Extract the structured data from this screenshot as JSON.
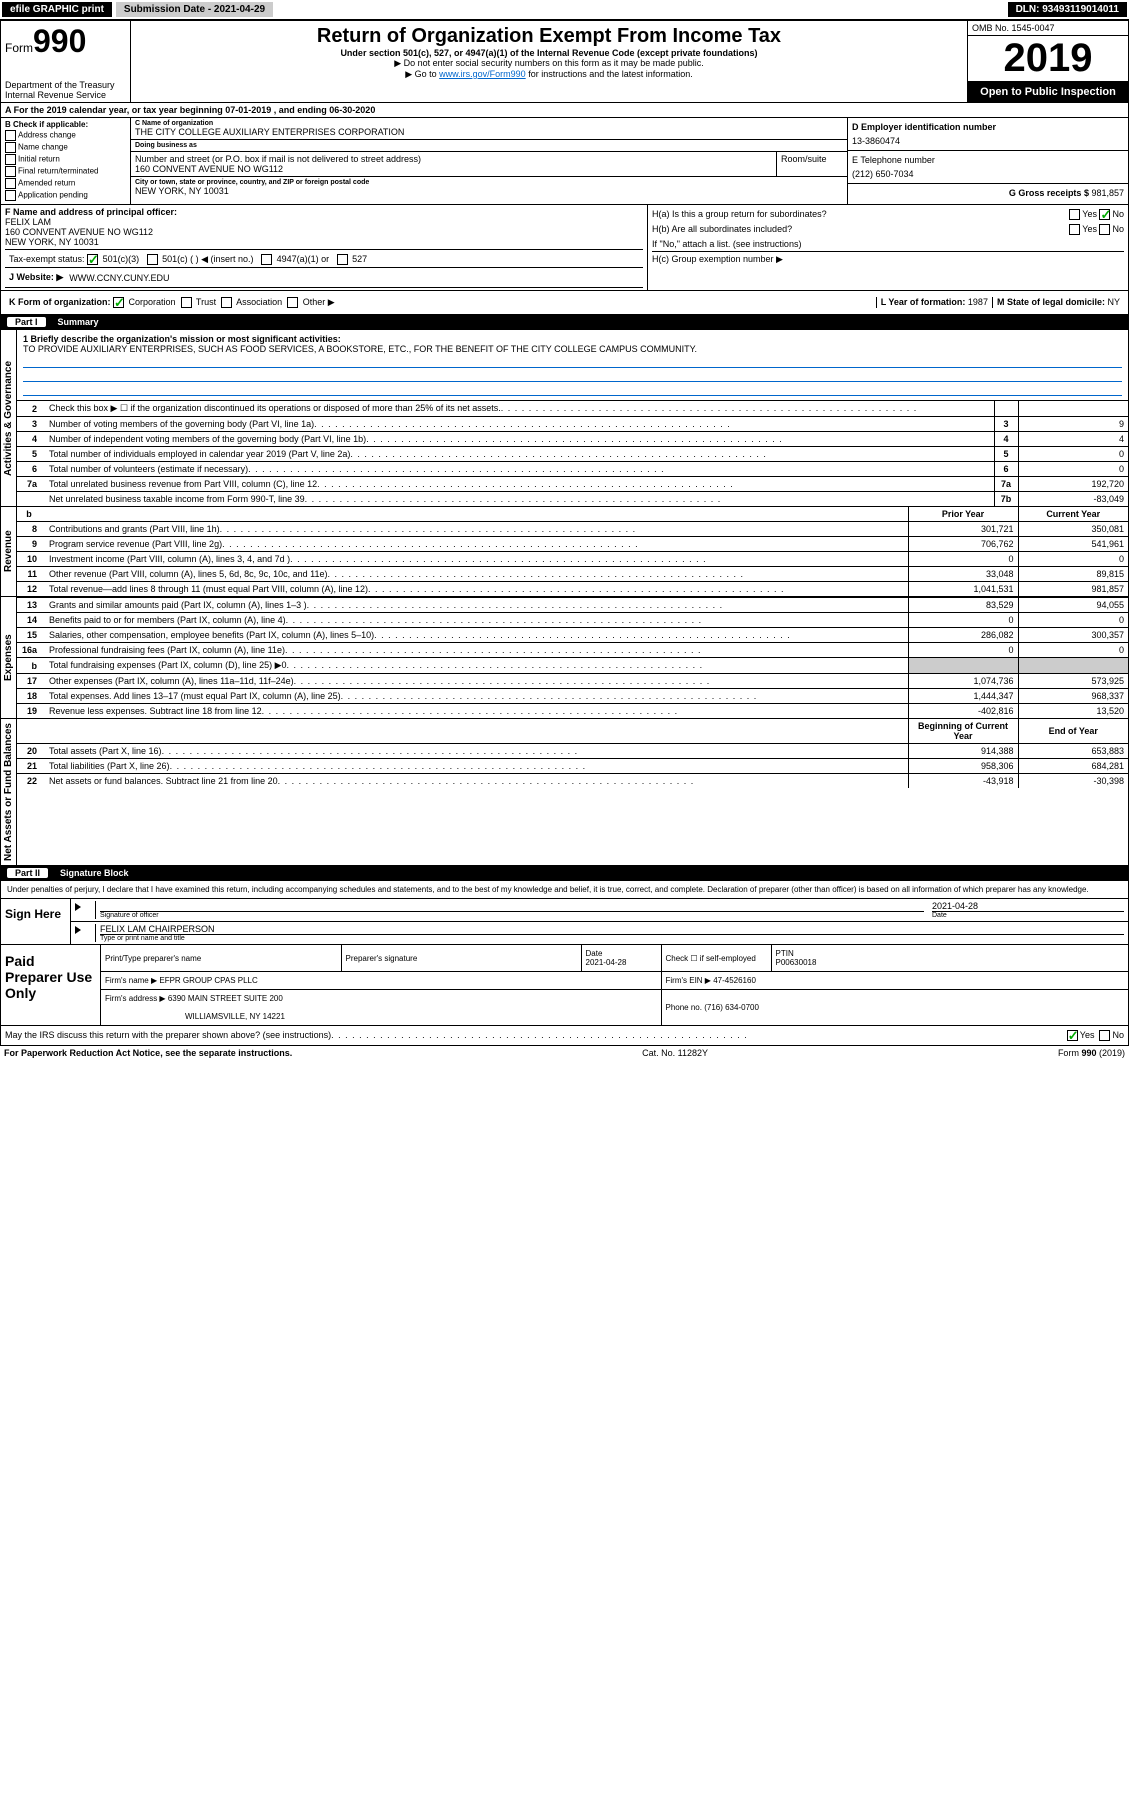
{
  "topbar": {
    "efile": "efile GRAPHIC print",
    "submission": "Submission Date - 2021-04-29",
    "dln": "DLN: 93493119014011"
  },
  "header": {
    "form_label": "Form",
    "form_number": "990",
    "title": "Return of Organization Exempt From Income Tax",
    "subtitle": "Under section 501(c), 527, or 4947(a)(1) of the Internal Revenue Code (except private foundations)",
    "note1": "▶ Do not enter social security numbers on this form as it may be made public.",
    "note2_pre": "▶ Go to ",
    "note2_link": "www.irs.gov/Form990",
    "note2_post": " for instructions and the latest information.",
    "dept": "Department of the Treasury\nInternal Revenue Service",
    "omb": "OMB No. 1545-0047",
    "year": "2019",
    "open": "Open to Public Inspection"
  },
  "rowA": "A For the 2019 calendar year, or tax year beginning 07-01-2019   , and ending 06-30-2020",
  "boxB": {
    "title": "B Check if applicable:",
    "items": [
      "Address change",
      "Name change",
      "Initial return",
      "Final return/terminated",
      "Amended return",
      "Application pending"
    ]
  },
  "boxC": {
    "name_label": "C Name of organization",
    "name": "THE CITY COLLEGE AUXILIARY ENTERPRISES CORPORATION",
    "dba_label": "Doing business as",
    "dba": "",
    "street_label": "Number and street (or P.O. box if mail is not delivered to street address)",
    "street": "160 CONVENT AVENUE NO WG112",
    "room_label": "Room/suite",
    "city_label": "City or town, state or province, country, and ZIP or foreign postal code",
    "city": "NEW YORK, NY  10031"
  },
  "boxD": {
    "label": "D Employer identification number",
    "value": "13-3860474"
  },
  "boxE": {
    "label": "E Telephone number",
    "value": "(212) 650-7034"
  },
  "boxG": {
    "label": "G Gross receipts $ ",
    "value": "981,857"
  },
  "boxF": {
    "label": "F  Name and address of principal officer:",
    "name": "FELIX LAM",
    "addr1": "160 CONVENT AVENUE NO WG112",
    "addr2": "NEW YORK, NY  10031"
  },
  "boxH": {
    "ha": "H(a)  Is this a group return for subordinates?",
    "hb": "H(b)  Are all subordinates included?",
    "hb_note": "If \"No,\" attach a list. (see instructions)",
    "hc": "H(c)  Group exemption number ▶",
    "yes": "Yes",
    "no": "No"
  },
  "rowI": {
    "label": "Tax-exempt status:",
    "opts": [
      "501(c)(3)",
      "501(c) (  ) ◀ (insert no.)",
      "4947(a)(1) or",
      "527"
    ]
  },
  "rowJ": {
    "label": "J Website: ▶",
    "value": "WWW.CCNY.CUNY.EDU"
  },
  "rowK": {
    "label": "K Form of organization:",
    "opts": [
      "Corporation",
      "Trust",
      "Association",
      "Other ▶"
    ]
  },
  "rowL": {
    "label": "L Year of formation: ",
    "value": "1987"
  },
  "rowM": {
    "label": "M State of legal domicile: ",
    "value": "NY"
  },
  "part1": {
    "num": "Part I",
    "title": "Summary"
  },
  "mission": {
    "label": "1  Briefly describe the organization's mission or most significant activities:",
    "text": "TO PROVIDE AUXILIARY ENTERPRISES, SUCH AS FOOD SERVICES, A BOOKSTORE, ETC., FOR THE BENEFIT OF THE CITY COLLEGE CAMPUS COMMUNITY."
  },
  "gov_rows": [
    {
      "ln": "2",
      "desc": "Check this box ▶ ☐  if the organization discontinued its operations or disposed of more than 25% of its net assets.",
      "num": "",
      "val": ""
    },
    {
      "ln": "3",
      "desc": "Number of voting members of the governing body (Part VI, line 1a)",
      "num": "3",
      "val": "9"
    },
    {
      "ln": "4",
      "desc": "Number of independent voting members of the governing body (Part VI, line 1b)",
      "num": "4",
      "val": "4"
    },
    {
      "ln": "5",
      "desc": "Total number of individuals employed in calendar year 2019 (Part V, line 2a)",
      "num": "5",
      "val": "0"
    },
    {
      "ln": "6",
      "desc": "Total number of volunteers (estimate if necessary)",
      "num": "6",
      "val": "0"
    },
    {
      "ln": "7a",
      "desc": "Total unrelated business revenue from Part VIII, column (C), line 12",
      "num": "7a",
      "val": "192,720"
    },
    {
      "ln": "",
      "desc": "Net unrelated business taxable income from Form 990-T, line 39",
      "num": "7b",
      "val": "-83,049"
    }
  ],
  "col_headers": {
    "prior": "Prior Year",
    "current": "Current Year"
  },
  "rev_rows": [
    {
      "ln": "8",
      "desc": "Contributions and grants (Part VIII, line 1h)",
      "p": "301,721",
      "c": "350,081"
    },
    {
      "ln": "9",
      "desc": "Program service revenue (Part VIII, line 2g)",
      "p": "706,762",
      "c": "541,961"
    },
    {
      "ln": "10",
      "desc": "Investment income (Part VIII, column (A), lines 3, 4, and 7d )",
      "p": "0",
      "c": "0"
    },
    {
      "ln": "11",
      "desc": "Other revenue (Part VIII, column (A), lines 5, 6d, 8c, 9c, 10c, and 11e)",
      "p": "33,048",
      "c": "89,815"
    },
    {
      "ln": "12",
      "desc": "Total revenue—add lines 8 through 11 (must equal Part VIII, column (A), line 12)",
      "p": "1,041,531",
      "c": "981,857"
    }
  ],
  "exp_rows": [
    {
      "ln": "13",
      "desc": "Grants and similar amounts paid (Part IX, column (A), lines 1–3 )",
      "p": "83,529",
      "c": "94,055"
    },
    {
      "ln": "14",
      "desc": "Benefits paid to or for members (Part IX, column (A), line 4)",
      "p": "0",
      "c": "0"
    },
    {
      "ln": "15",
      "desc": "Salaries, other compensation, employee benefits (Part IX, column (A), lines 5–10)",
      "p": "286,082",
      "c": "300,357"
    },
    {
      "ln": "16a",
      "desc": "Professional fundraising fees (Part IX, column (A), line 11e)",
      "p": "0",
      "c": "0"
    },
    {
      "ln": "b",
      "desc": "Total fundraising expenses (Part IX, column (D), line 25) ▶0",
      "p": "",
      "c": "",
      "shade": true
    },
    {
      "ln": "17",
      "desc": "Other expenses (Part IX, column (A), lines 11a–11d, 11f–24e)",
      "p": "1,074,736",
      "c": "573,925"
    },
    {
      "ln": "18",
      "desc": "Total expenses. Add lines 13–17 (must equal Part IX, column (A), line 25)",
      "p": "1,444,347",
      "c": "968,337"
    },
    {
      "ln": "19",
      "desc": "Revenue less expenses. Subtract line 18 from line 12",
      "p": "-402,816",
      "c": "13,520"
    }
  ],
  "na_headers": {
    "begin": "Beginning of Current Year",
    "end": "End of Year"
  },
  "na_rows": [
    {
      "ln": "20",
      "desc": "Total assets (Part X, line 16)",
      "p": "914,388",
      "c": "653,883"
    },
    {
      "ln": "21",
      "desc": "Total liabilities (Part X, line 26)",
      "p": "958,306",
      "c": "684,281"
    },
    {
      "ln": "22",
      "desc": "Net assets or fund balances. Subtract line 21 from line 20",
      "p": "-43,918",
      "c": "-30,398"
    }
  ],
  "sections": {
    "gov": "Activities & Governance",
    "rev": "Revenue",
    "exp": "Expenses",
    "na": "Net Assets or Fund Balances"
  },
  "part2": {
    "num": "Part II",
    "title": "Signature Block"
  },
  "sig": {
    "penalty": "Under penalties of perjury, I declare that I have examined this return, including accompanying schedules and statements, and to the best of my knowledge and belief, it is true, correct, and complete. Declaration of preparer (other than officer) is based on all information of which preparer has any knowledge.",
    "sign_here": "Sign Here",
    "sig_officer": "Signature of officer",
    "date_label": "Date",
    "date": "2021-04-28",
    "name_title": "FELIX LAM  CHAIRPERSON",
    "type_label": "Type or print name and title"
  },
  "paid": {
    "label": "Paid Preparer Use Only",
    "print_label": "Print/Type preparer's name",
    "prep_sig": "Preparer's signature",
    "date_label": "Date",
    "date": "2021-04-28",
    "check_label": "Check ☐ if self-employed",
    "ptin_label": "PTIN",
    "ptin": "P00630018",
    "firm_name_label": "Firm's name      ▶",
    "firm_name": "EFPR GROUP CPAS PLLC",
    "firm_ein_label": "Firm's EIN ▶",
    "firm_ein": "47-4526160",
    "firm_addr_label": "Firm's address ▶",
    "firm_addr1": "6390 MAIN STREET SUITE 200",
    "firm_addr2": "WILLIAMSVILLE, NY  14221",
    "phone_label": "Phone no. ",
    "phone": "(716) 634-0700"
  },
  "discuss": {
    "text": "May the IRS discuss this return with the preparer shown above? (see instructions)",
    "yes": "Yes",
    "no": "No"
  },
  "footer": {
    "left": "For Paperwork Reduction Act Notice, see the separate instructions.",
    "center": "Cat. No. 11282Y",
    "right": "Form 990 (2019)"
  },
  "b_row_label": "b"
}
